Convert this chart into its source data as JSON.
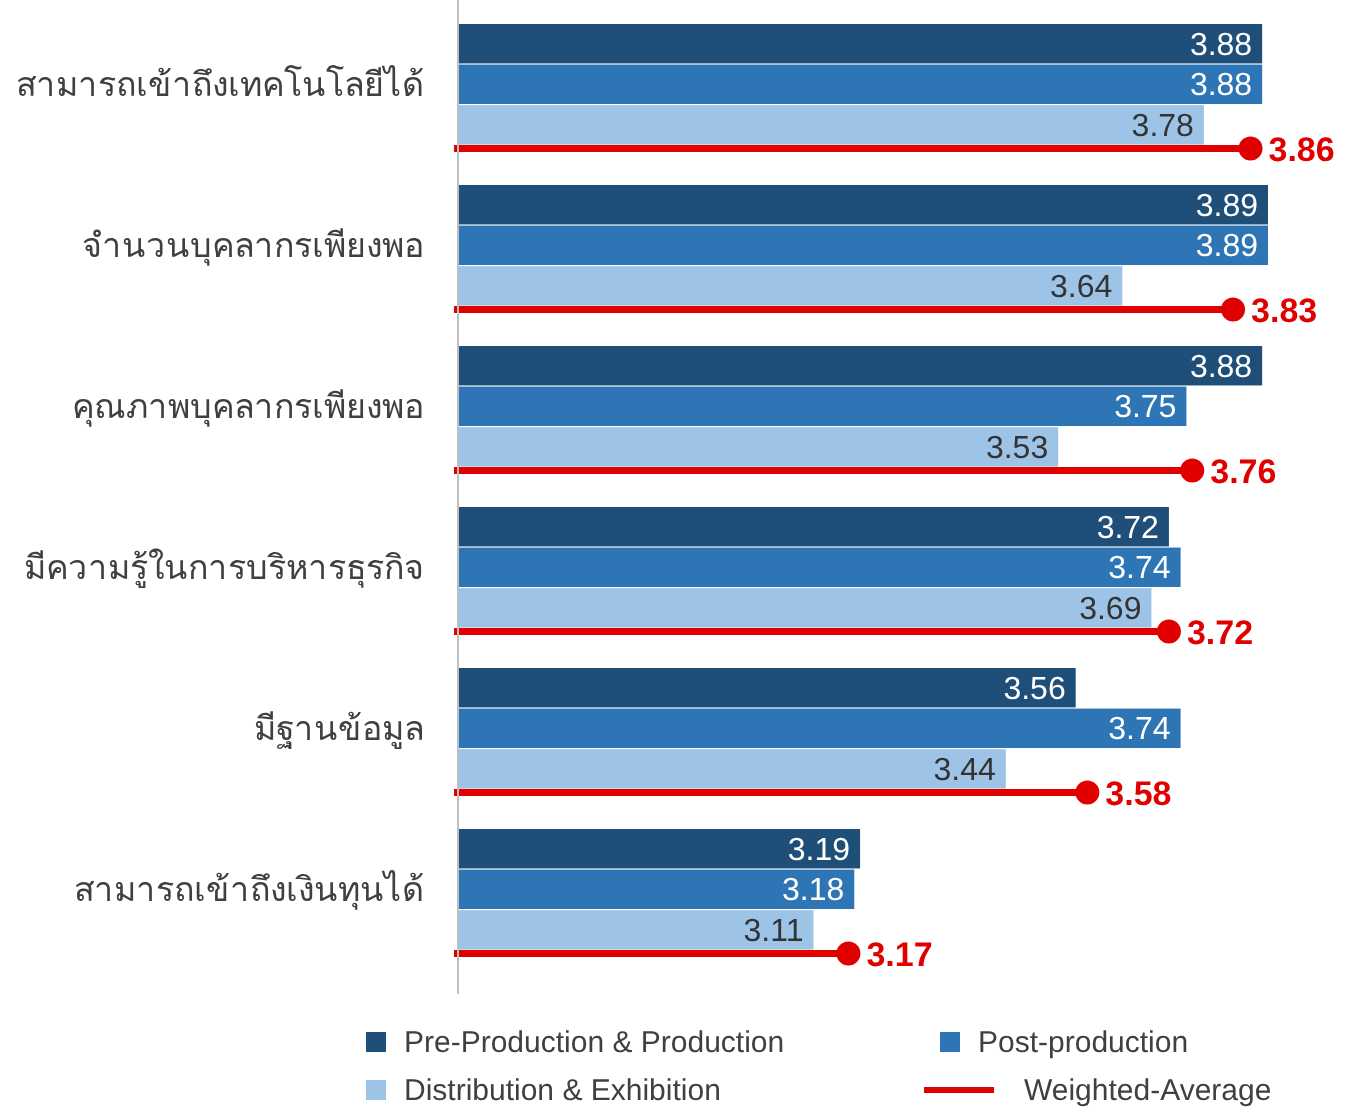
{
  "chart_data": {
    "type": "bar",
    "orientation": "horizontal",
    "xlim": [
      2.5,
      3.89
    ],
    "data_labels": true,
    "legend": "bottom",
    "categories": [
      "สามารถเข้าถึงเทคโนโลยีได้",
      "จำนวนบุคลากรเพียงพอ",
      "คุณภาพบุคลากรเพียงพอ",
      "มีความรู้ในการบริหารธุรกิจ",
      "มีฐานข้อมูล",
      "สามารถเข้าถึงเงินทุนได้"
    ],
    "series": [
      {
        "name": "Pre-Production & Production",
        "color": "#1f4e79",
        "values": [
          3.88,
          3.89,
          3.88,
          3.72,
          3.56,
          3.19
        ]
      },
      {
        "name": "Post-production",
        "color": "#2e75b6",
        "values": [
          3.88,
          3.89,
          3.75,
          3.74,
          3.74,
          3.18
        ]
      },
      {
        "name": "Distribution & Exhibition",
        "color": "#9dc3e6",
        "values": [
          3.78,
          3.64,
          3.53,
          3.69,
          3.44,
          3.11
        ]
      },
      {
        "name": "Weighted-Average",
        "type": "lollipop",
        "color": "#e00000",
        "values": [
          3.86,
          3.83,
          3.76,
          3.72,
          3.58,
          3.17
        ]
      }
    ]
  }
}
